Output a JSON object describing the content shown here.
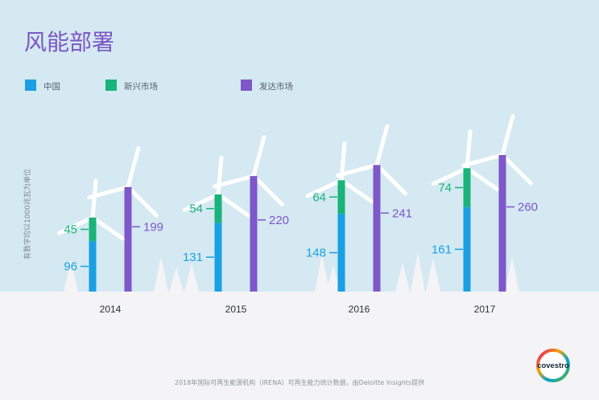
{
  "chart_data": {
    "type": "bar",
    "title": "风能部署",
    "ylabel": "有数字均以1000兆瓦为单位",
    "categories": [
      "2014",
      "2015",
      "2016",
      "2017"
    ],
    "series": [
      {
        "name": "中国",
        "values": [
          96,
          131,
          148,
          161
        ],
        "color": "#1aa0e2"
      },
      {
        "name": "新兴市场",
        "values": [
          45,
          54,
          64,
          74
        ],
        "color": "#1ab37a"
      },
      {
        "name": "发达市场",
        "values": [
          199,
          220,
          241,
          260
        ],
        "color": "#7e57c9"
      }
    ],
    "stacked_series": [
      "中国",
      "新兴市场"
    ],
    "ylim": [
      0,
      260
    ],
    "grid": false,
    "legend": "top-left"
  },
  "source": "2018年国际可再生能源机构（IRENA）可再生能力统计数据，由Deloitte Insights提供",
  "brand": {
    "logo_text": "covestro",
    "icon": "covestro-logo-ring"
  },
  "colors": {
    "background": "#d4e9f2",
    "ground": "#f4f3f6",
    "title": "#7b55c4"
  }
}
